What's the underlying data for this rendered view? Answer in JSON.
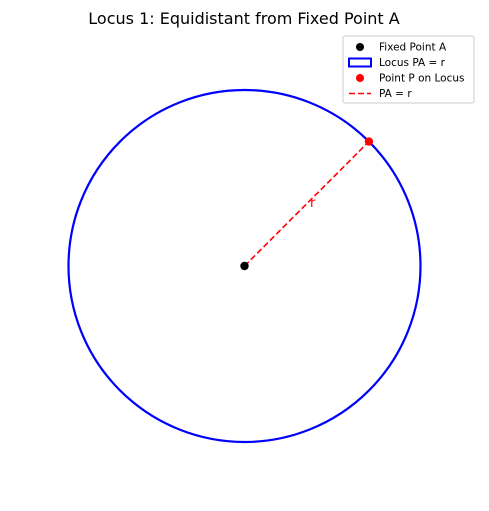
{
  "figure": {
    "title": "Locus 1: Equidistant from Fixed Point A"
  },
  "colors": {
    "locus": "#0000ff",
    "fixed_point": "#000000",
    "point_p": "#ff0000",
    "radius_line": "#ff0000"
  },
  "diagram": {
    "center": {
      "x": 0,
      "y": 0
    },
    "radius": 1,
    "point_p_angle_deg": 45,
    "radius_label": "r"
  },
  "legend": {
    "placement": "upper right",
    "items": [
      {
        "label": "Fixed Point A",
        "symbol": "dot",
        "color": "#000000"
      },
      {
        "label": "Locus PA = r",
        "symbol": "rect",
        "color": "#0000ff"
      },
      {
        "label": "Point P on Locus",
        "symbol": "dot",
        "color": "#ff0000"
      },
      {
        "label": "PA = r",
        "symbol": "dash",
        "color": "#ff0000"
      }
    ]
  }
}
